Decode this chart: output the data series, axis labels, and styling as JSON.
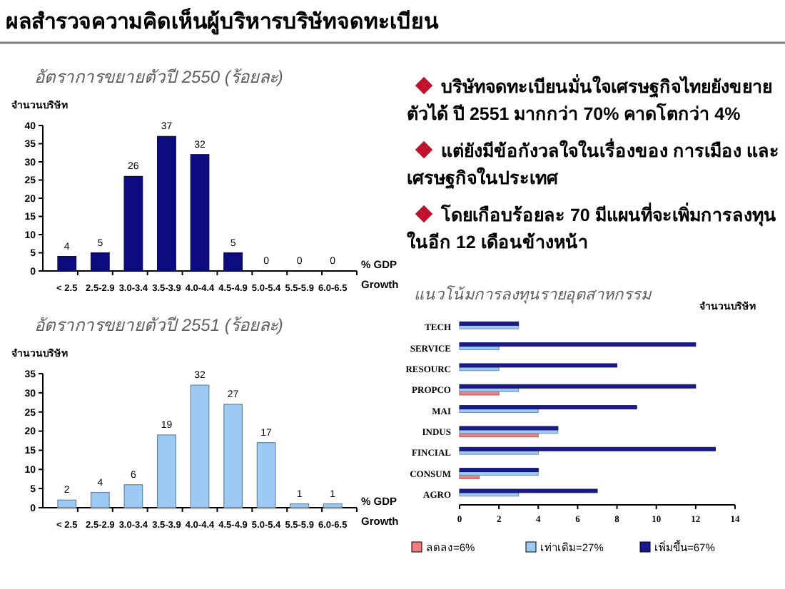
{
  "chart_data": [
    {
      "type": "other",
      "title": "ผลสำรวจความคิดเห็นผู้บริหารบริษัทจดทะเบียน",
      "annotations": [
        "บริษัทจดทะเบียนมั่นใจเศรษฐกิจไทยยังขยายตัวได้ ปี 2551 มากกว่า 70% คาดโตกว่า 4%",
        "แต่ยังมีข้อกังวลใจในเรื่องของ การเมือง และเศรษฐกิจในประเทศ",
        "โดยเกือบร้อยละ 70 มีแผนที่จะเพิ่มการลงทุนในอีก 12 เดือนข้างหน้า"
      ]
    },
    {
      "type": "bar",
      "title": "อัตราการขยายตัวปี 2550 (ร้อยละ)",
      "ylabel": "จำนวนบริษัท",
      "xlabel": "% GDP Growth",
      "categories": [
        "< 2.5",
        "2.5-2.9",
        "3.0-3.4",
        "3.5-3.9",
        "4.0-4.4",
        "4.5-4.9",
        "5.0-5.4",
        "5.5-5.9",
        "6.0-6.5"
      ],
      "values": [
        4,
        5,
        26,
        37,
        32,
        5,
        0,
        0,
        0
      ],
      "color": "#0c0c80",
      "ylim": [
        0,
        40
      ],
      "yticks": [
        0,
        5,
        10,
        15,
        20,
        25,
        30,
        35,
        40
      ],
      "data_labels": true
    },
    {
      "type": "bar",
      "title": "อัตราการขยายตัวปี 2551 (ร้อยละ)",
      "ylabel": "จำนวนบริษัท",
      "xlabel": "% GDP Growth",
      "categories": [
        "< 2.5",
        "2.5-2.9",
        "3.0-3.4",
        "3.5-3.9",
        "4.0-4.4",
        "4.5-4.9",
        "5.0-5.4",
        "5.5-5.9",
        "6.0-6.5"
      ],
      "values": [
        2,
        4,
        6,
        19,
        32,
        27,
        17,
        1,
        1
      ],
      "color": "#9ccaf4",
      "ylim": [
        0,
        35
      ],
      "yticks": [
        0,
        5,
        10,
        15,
        20,
        25,
        30,
        35
      ],
      "data_labels": true
    },
    {
      "type": "bar",
      "orientation": "horizontal",
      "title": "แนวโน้มการลงทุนรายอุตสาหกรรม",
      "xlabel": "จำนวนบริษัท",
      "categories": [
        "TECH",
        "SERVICE",
        "RESOURC",
        "PROPCO",
        "MAI",
        "INDUS",
        "FINCIAL",
        "CONSUM",
        "AGRO"
      ],
      "xlim": [
        0,
        14
      ],
      "xticks": [
        0,
        2,
        4,
        6,
        8,
        10,
        12,
        14
      ],
      "legend": "bottom",
      "series": [
        {
          "name": "ลดลง=6%",
          "color": "#f08080",
          "values": [
            null,
            null,
            null,
            2,
            null,
            4,
            null,
            1,
            null
          ]
        },
        {
          "name": "เท่าเดิม=27%",
          "color": "#9ccaf4",
          "values": [
            3,
            2,
            2,
            3,
            4,
            5,
            4,
            4,
            3
          ]
        },
        {
          "name": "เพิ่มขึ้น=67%",
          "color": "#1a1a8c",
          "values": [
            3,
            12,
            8,
            12,
            9,
            5,
            13,
            4,
            7
          ]
        }
      ]
    }
  ]
}
